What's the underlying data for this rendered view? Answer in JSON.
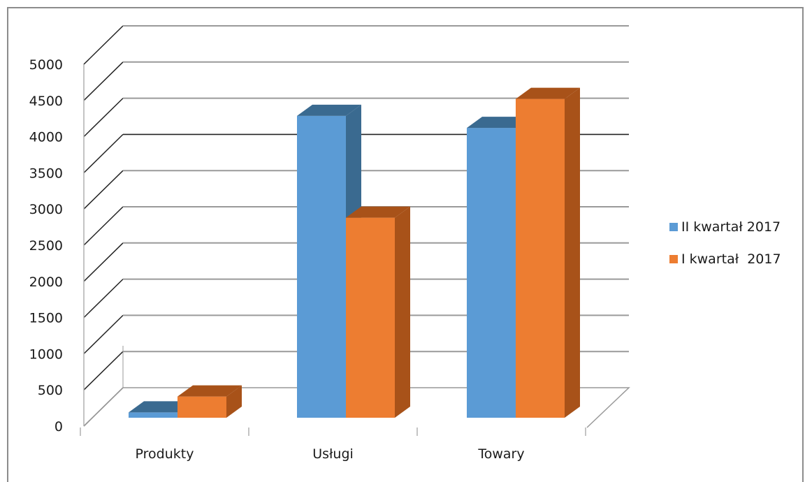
{
  "chart_data": {
    "type": "bar",
    "title": "",
    "xlabel": "",
    "ylabel": "",
    "categories": [
      "Produkty",
      "Usługi",
      "Towary"
    ],
    "series": [
      {
        "name": "II kwartał 2017",
        "values": [
          75,
          4270,
          4100
        ],
        "color": "#5b9bd5",
        "side_color": "#3a6a90"
      },
      {
        "name": "I kwartał  2017",
        "values": [
          300,
          2830,
          4510
        ],
        "color": "#ed7d31",
        "side_color": "#a85219"
      }
    ],
    "ylim": [
      0,
      5000
    ],
    "yticks": [
      0,
      500,
      1000,
      1500,
      2000,
      2500,
      3000,
      3500,
      4000,
      4500,
      5000
    ],
    "gridlines": true,
    "legend_position": "right",
    "style": "3d-clustered-column"
  }
}
